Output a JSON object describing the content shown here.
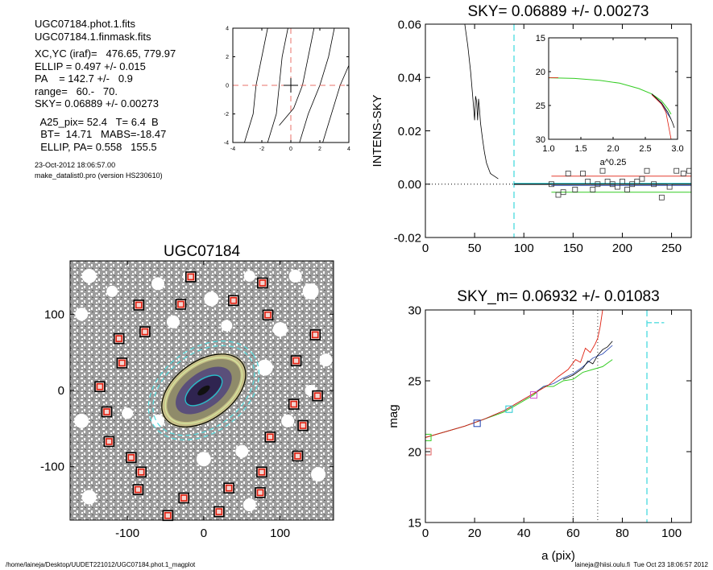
{
  "header": {
    "lines_a": [
      "UGC07184.phot.1.fits",
      "UGC07184.1.finmask.fits"
    ],
    "lines_b": [
      "XC,YC (iraf)=   476.65, 779.97",
      "ELLIP = 0.497 +/- 0.015",
      "PA    = 142.7 +/-   0.9",
      "range=   60.-   70.",
      "SKY= 0.06889 +/- 0.00273"
    ],
    "lines_c": [
      "  A25_pix= 52.4   T= 6.4  B",
      "  BT=  14.71   MABS=-18.47",
      "  ELLIP, PA= 0.558   155.5"
    ],
    "date_line": "23-Oct-2012 18:06:57.00",
    "program_line": "make_datalist0.pro (version HS230610)"
  },
  "footer": {
    "left": "/home/laineja/Desktop/UUDET221012/UGC07184.phot.1_magplot",
    "right": "laineja@hiisi.oulu.fi  Tue Oct 23 18:06:57 2012"
  },
  "colors": {
    "guide": "#e8706a",
    "sky_dash": "#55dde0",
    "red": "#e02010",
    "green": "#33cc22",
    "blue": "#2040b0",
    "magenta": "#d050d0",
    "cyan": "#20c8d0",
    "gray_field": "#707070"
  },
  "chart_data": [
    {
      "id": "center_plot",
      "type": "line",
      "title": "",
      "xlim": [
        -4,
        4
      ],
      "ylim": [
        -4,
        4
      ],
      "xticks": [
        "-4",
        "-2",
        "0",
        "2",
        "4"
      ],
      "yticks": [
        "-4",
        "-2",
        "0",
        "2",
        "4"
      ],
      "contours": [
        [
          [
            -3.2,
            -4
          ],
          [
            -2.6,
            -2
          ],
          [
            -2.4,
            0
          ],
          [
            -2.0,
            2
          ],
          [
            -1.6,
            4
          ]
        ],
        [
          [
            -1.6,
            -4
          ],
          [
            -1.0,
            -2
          ],
          [
            -0.8,
            0
          ],
          [
            -0.6,
            2
          ],
          [
            -0.2,
            4
          ]
        ],
        [
          [
            -0.8,
            -2.8
          ],
          [
            0.2,
            -1.6
          ],
          [
            0.8,
            0
          ],
          [
            1.2,
            2
          ],
          [
            1.6,
            4
          ]
        ],
        [
          [
            0.6,
            -4
          ],
          [
            1.2,
            -2
          ],
          [
            2.0,
            0
          ],
          [
            2.6,
            2
          ],
          [
            3.0,
            4
          ]
        ],
        [
          [
            2.2,
            -4
          ],
          [
            2.8,
            -2
          ],
          [
            3.4,
            0
          ],
          [
            4,
            1.4
          ]
        ]
      ],
      "center": [
        0,
        0
      ]
    },
    {
      "id": "sky_plot",
      "type": "line",
      "title": "SKY= 0.06889 +/- 0.00273",
      "xlabel": "",
      "ylabel": "INTENS-SKY",
      "xlim": [
        0,
        270
      ],
      "ylim": [
        -0.02,
        0.06
      ],
      "xticks": [
        "0",
        "50",
        "100",
        "150",
        "200",
        "250"
      ],
      "yticks": [
        "0.06",
        "0.04",
        "0.02",
        "0.00",
        "-0.02"
      ],
      "sky_radius": 90,
      "profile": [
        [
          40,
          0.06
        ],
        [
          43,
          0.052
        ],
        [
          46,
          0.042
        ],
        [
          48,
          0.033
        ],
        [
          50,
          0.024
        ],
        [
          51,
          0.033
        ],
        [
          52,
          0.031
        ],
        [
          53,
          0.024
        ],
        [
          54,
          0.032
        ],
        [
          55,
          0.028
        ],
        [
          56,
          0.023
        ],
        [
          58,
          0.017
        ],
        [
          60,
          0.012
        ],
        [
          62,
          0.008
        ],
        [
          64,
          0.006
        ],
        [
          66,
          0.004
        ],
        [
          68,
          0.0035
        ],
        [
          70,
          0.003
        ],
        [
          74,
          0.002
        ]
      ],
      "sky_points": [
        [
          128,
          0.0
        ],
        [
          135,
          -0.004
        ],
        [
          140,
          -0.003
        ],
        [
          145,
          0.004
        ],
        [
          152,
          -0.002
        ],
        [
          160,
          0.004
        ],
        [
          165,
          0.001
        ],
        [
          170,
          -0.002
        ],
        [
          175,
          0.0
        ],
        [
          180,
          0.005
        ],
        [
          185,
          0.001
        ],
        [
          190,
          0.0
        ],
        [
          195,
          -0.001
        ],
        [
          200,
          0.001
        ],
        [
          205,
          -0.002
        ],
        [
          210,
          0.0
        ],
        [
          215,
          0.001
        ],
        [
          220,
          0.002
        ],
        [
          225,
          0.005
        ],
        [
          232,
          0.0
        ],
        [
          240,
          -0.005
        ],
        [
          248,
          -0.001
        ],
        [
          255,
          0.005
        ],
        [
          262,
          0.004
        ],
        [
          268,
          0.005
        ]
      ],
      "band_upper": 0.003,
      "band_lower": -0.003,
      "inset": {
        "xlabel": "a^0.25",
        "xlim": [
          1.0,
          3.0
        ],
        "ylim": [
          15,
          30
        ],
        "xticks": [
          "1.0",
          "1.5",
          "2.0",
          "2.5",
          "3.0"
        ],
        "yticks": [
          "15",
          "20",
          "25",
          "30"
        ],
        "green": [
          [
            1.0,
            20.9
          ],
          [
            1.4,
            21.0
          ],
          [
            1.8,
            21.3
          ],
          [
            2.1,
            21.7
          ],
          [
            2.4,
            22.5
          ],
          [
            2.6,
            23.3
          ],
          [
            2.75,
            24.3
          ],
          [
            2.85,
            25.5
          ],
          [
            2.9,
            26.3
          ]
        ],
        "black": [
          [
            2.6,
            23.3
          ],
          [
            2.75,
            24.6
          ],
          [
            2.85,
            26.0
          ],
          [
            2.92,
            27.5
          ],
          [
            2.95,
            28.3
          ]
        ],
        "blue": [
          [
            2.6,
            23.3
          ],
          [
            2.75,
            24.7
          ],
          [
            2.85,
            26.3
          ],
          [
            2.9,
            27.0
          ]
        ],
        "red": [
          [
            2.6,
            23.4
          ],
          [
            2.75,
            24.8
          ],
          [
            2.82,
            26.0
          ],
          [
            2.85,
            27.5
          ],
          [
            2.88,
            29.0
          ],
          [
            2.9,
            30.0
          ]
        ],
        "green_label_start": [
          1.0,
          20.9
        ]
      }
    },
    {
      "id": "galaxy_image",
      "type": "scatter",
      "title": "UGC07184",
      "xlim": [
        -175,
        170
      ],
      "ylim": [
        -170,
        170
      ],
      "xticks": [
        "-100",
        "0",
        "100"
      ],
      "yticks": [
        "100",
        "0",
        "-100"
      ],
      "mask_boxes": [
        [
          -17,
          149
        ],
        [
          77,
          141
        ],
        [
          -85,
          112
        ],
        [
          -30,
          113
        ],
        [
          39,
          118
        ],
        [
          84,
          99
        ],
        [
          -77,
          77
        ],
        [
          -111,
          68
        ],
        [
          146,
          73
        ],
        [
          -107,
          36
        ],
        [
          121,
          39
        ],
        [
          -136,
          5
        ],
        [
          -127,
          -28
        ],
        [
          118,
          -18
        ],
        [
          149,
          -7
        ],
        [
          130,
          -46
        ],
        [
          87,
          -61
        ],
        [
          -124,
          -67
        ],
        [
          -95,
          -88
        ],
        [
          123,
          -86
        ],
        [
          -82,
          -107
        ],
        [
          76,
          -107
        ],
        [
          -86,
          -130
        ],
        [
          33,
          -128
        ],
        [
          74,
          -134
        ],
        [
          -26,
          -141
        ],
        [
          -47,
          -164
        ],
        [
          20,
          -159
        ]
      ],
      "ellipse_pa": 36,
      "ellipses": [
        {
          "a": 80,
          "b": 55,
          "color": "#55dde0",
          "dash": true
        },
        {
          "a": 74,
          "b": 49,
          "color": "#55dde0",
          "dash": true
        },
        {
          "a": 62,
          "b": 38,
          "color": "#000000",
          "dash": false
        },
        {
          "a": 57,
          "b": 34,
          "color": "#d4e8a0",
          "dash": false
        },
        {
          "a": 28,
          "b": 14,
          "color": "#20c8d0",
          "dash": false
        }
      ]
    },
    {
      "id": "mag_plot",
      "type": "line",
      "title": "SKY_m=  0.06932 +/- 0.01083",
      "xlabel": "a (pix)",
      "ylabel": "mag",
      "xlim": [
        0,
        108
      ],
      "ylim": [
        15,
        30
      ],
      "xticks": [
        "0",
        "20",
        "40",
        "60",
        "80",
        "100"
      ],
      "yticks": [
        "15",
        "20",
        "25",
        "30"
      ],
      "range_lines": [
        60,
        70
      ],
      "sky_line": 90,
      "markers": [
        {
          "x": 1,
          "y": 20.0,
          "color": "#e06060"
        },
        {
          "x": 1,
          "y": 21.0,
          "color": "#33cc22"
        },
        {
          "x": 21,
          "y": 22.0,
          "color": "#2040b0"
        },
        {
          "x": 34,
          "y": 23.0,
          "color": "#20c8d0"
        },
        {
          "x": 44,
          "y": 24.0,
          "color": "#d050d0"
        }
      ],
      "green": [
        [
          0,
          21.0
        ],
        [
          8,
          21.4
        ],
        [
          16,
          21.8
        ],
        [
          24,
          22.3
        ],
        [
          32,
          22.8
        ],
        [
          38,
          23.4
        ],
        [
          44,
          24.0
        ],
        [
          48,
          24.6
        ],
        [
          52,
          24.6
        ],
        [
          56,
          25.0
        ],
        [
          60,
          25.1
        ],
        [
          64,
          25.6
        ],
        [
          68,
          25.8
        ],
        [
          72,
          26.0
        ],
        [
          76,
          26.5
        ]
      ],
      "blue": [
        [
          0,
          21.0
        ],
        [
          8,
          21.4
        ],
        [
          16,
          21.8
        ],
        [
          24,
          22.3
        ],
        [
          32,
          22.9
        ],
        [
          38,
          23.5
        ],
        [
          44,
          24.1
        ],
        [
          48,
          24.6
        ],
        [
          52,
          24.8
        ],
        [
          56,
          25.2
        ],
        [
          60,
          25.5
        ],
        [
          64,
          26.0
        ],
        [
          68,
          26.6
        ],
        [
          72,
          26.9
        ],
        [
          76,
          27.5
        ]
      ],
      "red": [
        [
          0,
          21.0
        ],
        [
          8,
          21.4
        ],
        [
          16,
          21.8
        ],
        [
          24,
          22.3
        ],
        [
          32,
          22.9
        ],
        [
          38,
          23.5
        ],
        [
          44,
          24.1
        ],
        [
          50,
          24.7
        ],
        [
          54,
          25.3
        ],
        [
          58,
          25.8
        ],
        [
          61,
          26.5
        ],
        [
          63,
          26.3
        ],
        [
          65,
          27.3
        ],
        [
          67,
          27.0
        ],
        [
          69,
          27.6
        ],
        [
          70,
          28.0
        ],
        [
          71,
          28.8
        ],
        [
          72,
          30.0
        ]
      ],
      "black": [
        [
          56,
          25.1
        ],
        [
          60,
          25.4
        ],
        [
          64,
          25.9
        ],
        [
          66,
          26.4
        ],
        [
          68,
          26.2
        ],
        [
          70,
          26.8
        ],
        [
          72,
          27.2
        ],
        [
          74,
          27.4
        ],
        [
          76,
          27.8
        ]
      ],
      "sky_segment": [
        [
          90,
          29.1
        ],
        [
          97,
          29.1
        ]
      ]
    }
  ]
}
